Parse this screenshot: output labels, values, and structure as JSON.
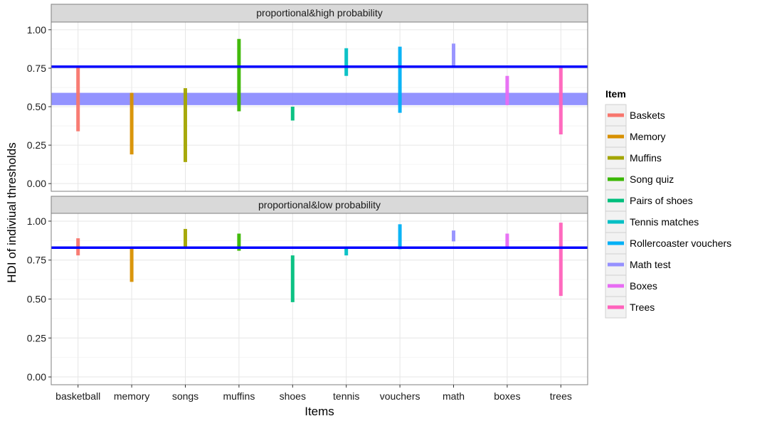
{
  "chart_data": {
    "type": "faceted-interval",
    "xlabel": "Items",
    "ylabel": "HDI of indiviual thresholds",
    "x_categories": [
      "basketball",
      "memory",
      "songs",
      "muffins",
      "shoes",
      "tennis",
      "vouchers",
      "math",
      "boxes",
      "trees"
    ],
    "y_ticks": [
      "0.00",
      "0.25",
      "0.50",
      "0.75",
      "1.00"
    ],
    "ylim": [
      -0.05,
      1.05
    ],
    "legend": {
      "title": "Item",
      "position": "right",
      "entries": [
        {
          "name": "Baskets",
          "color": "#F8766D"
        },
        {
          "name": "Memory",
          "color": "#D89000"
        },
        {
          "name": "Muffins",
          "color": "#A3A500"
        },
        {
          "name": "Song quiz",
          "color": "#39B600"
        },
        {
          "name": "Pairs of shoes",
          "color": "#00BF7D"
        },
        {
          "name": "Tennis matches",
          "color": "#00BFC4"
        },
        {
          "name": "Rollercoaster vouchers",
          "color": "#00B0F6"
        },
        {
          "name": "Math test",
          "color": "#9590FF"
        },
        {
          "name": "Boxes",
          "color": "#E76BF3"
        },
        {
          "name": "Trees",
          "color": "#FF62BC"
        }
      ]
    },
    "panels": [
      {
        "title": "proportional&high probability",
        "hline": 0.76,
        "band": [
          0.51,
          0.59
        ],
        "intervals": [
          {
            "x": "basketball",
            "low": 0.34,
            "high": 0.76
          },
          {
            "x": "memory",
            "low": 0.19,
            "high": 0.59
          },
          {
            "x": "songs",
            "low": 0.14,
            "high": 0.62
          },
          {
            "x": "muffins",
            "low": 0.47,
            "high": 0.94
          },
          {
            "x": "shoes",
            "low": 0.41,
            "high": 0.5
          },
          {
            "x": "tennis",
            "low": 0.7,
            "high": 0.88
          },
          {
            "x": "vouchers",
            "low": 0.46,
            "high": 0.89
          },
          {
            "x": "math",
            "low": 0.76,
            "high": 0.91
          },
          {
            "x": "boxes",
            "low": 0.51,
            "high": 0.7
          },
          {
            "x": "trees",
            "low": 0.32,
            "high": 0.76
          }
        ]
      },
      {
        "title": "proportional&low probability",
        "hline": 0.83,
        "band": null,
        "intervals": [
          {
            "x": "basketball",
            "low": 0.78,
            "high": 0.89
          },
          {
            "x": "memory",
            "low": 0.61,
            "high": 0.83
          },
          {
            "x": "songs",
            "low": 0.83,
            "high": 0.95
          },
          {
            "x": "muffins",
            "low": 0.81,
            "high": 0.92
          },
          {
            "x": "shoes",
            "low": 0.48,
            "high": 0.78
          },
          {
            "x": "tennis",
            "low": 0.78,
            "high": 0.83
          },
          {
            "x": "vouchers",
            "low": 0.82,
            "high": 0.98
          },
          {
            "x": "math",
            "low": 0.87,
            "high": 0.94
          },
          {
            "x": "boxes",
            "low": 0.83,
            "high": 0.92
          },
          {
            "x": "trees",
            "low": 0.52,
            "high": 0.99
          }
        ]
      }
    ],
    "hline_color": "#0000FF",
    "band_color": "#8080FF"
  }
}
